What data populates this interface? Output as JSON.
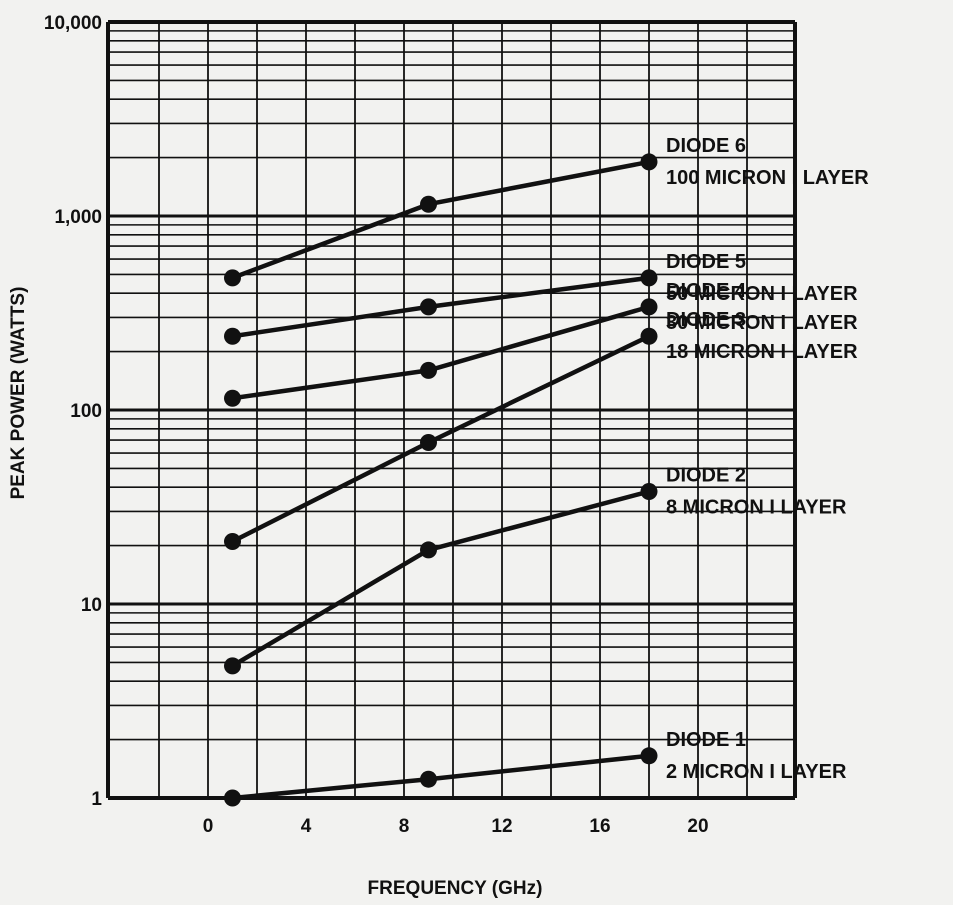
{
  "chart_data": {
    "type": "line",
    "xlabel": "FREQUENCY (GHz)",
    "ylabel": "PEAK POWER (WATTS)",
    "y_scale": "log",
    "ylim": [
      1,
      10000
    ],
    "xlim": [
      -2,
      25
    ],
    "x_ticks": [
      0,
      4,
      8,
      12,
      16,
      20
    ],
    "x_tick_labels": [
      "0",
      "4",
      "8",
      "12",
      "16",
      "20"
    ],
    "y_ticks": [
      1,
      10,
      100,
      1000,
      10000
    ],
    "y_tick_labels": [
      "1",
      "10",
      "100",
      "1,000",
      "10,000"
    ],
    "grid": true,
    "line_color": "#111111",
    "x": [
      1,
      9,
      18
    ],
    "series": [
      {
        "name": "DIODE 6",
        "sublabel": "100 MICRON I LAYER",
        "values": [
          480,
          1150,
          1900
        ]
      },
      {
        "name": "DIODE 5",
        "sublabel": "50 MICRON I LAYER",
        "values": [
          240,
          340,
          480
        ]
      },
      {
        "name": "DIODE 4",
        "sublabel": "30 MICRON I LAYER",
        "values": [
          115,
          160,
          340
        ]
      },
      {
        "name": "DIODE 3",
        "sublabel": "18 MICRON I LAYER",
        "values": [
          21,
          68,
          240
        ]
      },
      {
        "name": "DIODE 2",
        "sublabel": "8 MICRON I LAYER",
        "values": [
          4.8,
          19,
          38
        ]
      },
      {
        "name": "DIODE 1",
        "sublabel": "2 MICRON I LAYER",
        "values": [
          1.0,
          1.25,
          1.65
        ]
      }
    ]
  }
}
